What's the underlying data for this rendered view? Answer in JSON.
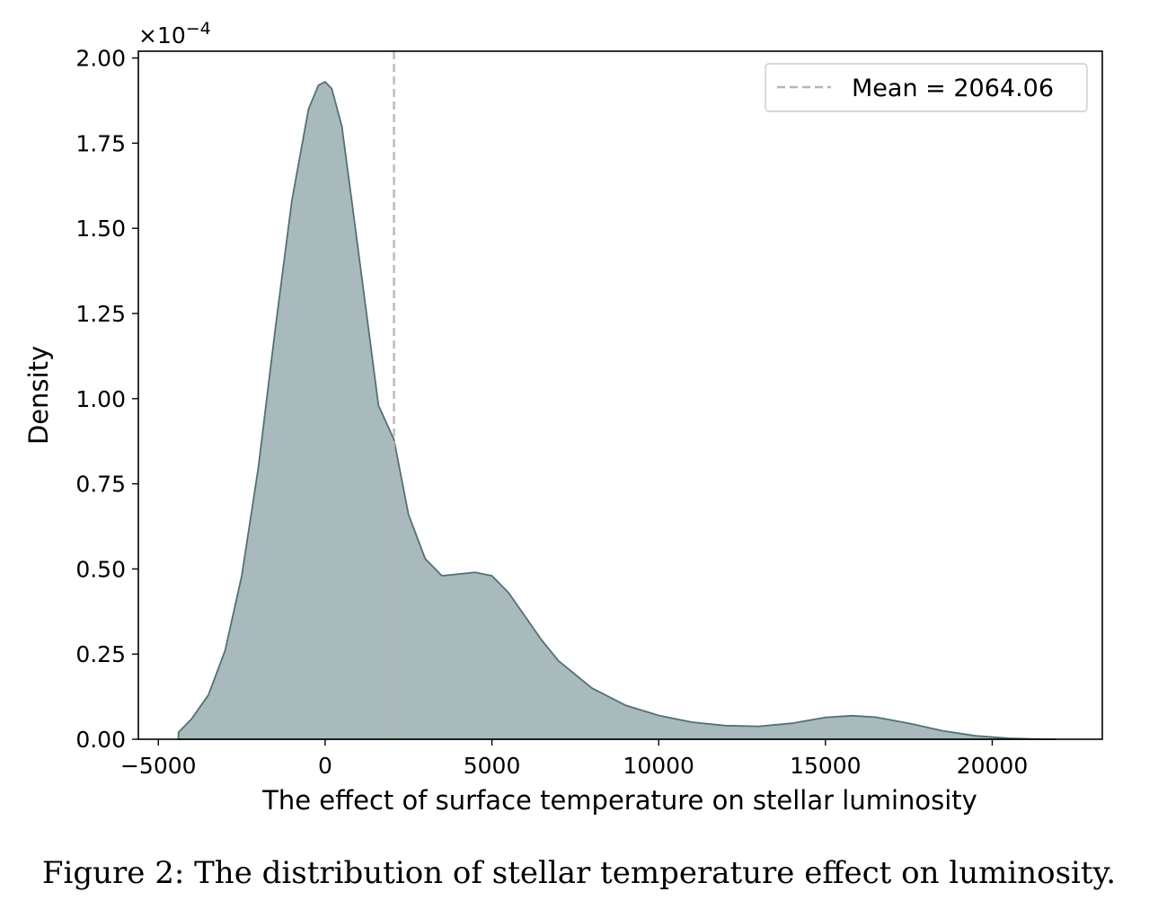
{
  "chart_data": {
    "type": "area",
    "xlabel": "The effect of surface temperature on stellar luminosity",
    "ylabel": "Density",
    "y_scale_label": "×10",
    "y_scale_exponent": "−4",
    "y_scale_factor": 0.0001,
    "xlim": [
      -5600,
      23300
    ],
    "ylim": [
      0,
      2.02
    ],
    "x_ticks": [
      -5000,
      0,
      5000,
      10000,
      15000,
      20000
    ],
    "x_tick_labels": [
      "−5000",
      "0",
      "5000",
      "10000",
      "15000",
      "20000"
    ],
    "y_ticks": [
      0,
      0.25,
      0.5,
      0.75,
      1.0,
      1.25,
      1.5,
      1.75,
      2.0
    ],
    "y_tick_labels": [
      "0.00",
      "0.25",
      "0.50",
      "0.75",
      "1.00",
      "1.25",
      "1.50",
      "1.75",
      "2.00"
    ],
    "series": [
      {
        "x": [
          -4400,
          -4000,
          -3500,
          -3000,
          -2500,
          -2000,
          -1500,
          -1000,
          -500,
          -200,
          0,
          200,
          500,
          800,
          1200,
          1600,
          2064,
          2500,
          3000,
          3500,
          4000,
          4500,
          5000,
          5500,
          6000,
          6500,
          7000,
          8000,
          9000,
          10000,
          11000,
          12000,
          13000,
          14000,
          15000,
          15800,
          16500,
          17500,
          18500,
          19500,
          20500,
          21300,
          21900
        ],
        "values": [
          0.02,
          0.06,
          0.13,
          0.26,
          0.48,
          0.8,
          1.2,
          1.58,
          1.85,
          1.92,
          1.93,
          1.91,
          1.8,
          1.58,
          1.28,
          0.98,
          0.88,
          0.66,
          0.53,
          0.48,
          0.485,
          0.49,
          0.48,
          0.43,
          0.36,
          0.29,
          0.23,
          0.15,
          0.1,
          0.07,
          0.05,
          0.04,
          0.038,
          0.047,
          0.064,
          0.069,
          0.065,
          0.047,
          0.025,
          0.01,
          0.003,
          0.0005,
          0.0
        ]
      }
    ],
    "mean": 2064.06,
    "legend_label": "Mean = 2064.06",
    "legend_position": "top-right",
    "grid": false,
    "colors": {
      "fill": "#a9babd",
      "line": "#557075",
      "mean_line": "#b5b5b5"
    }
  },
  "caption": "Figure 2: The distribution of stellar temperature effect on luminosity."
}
